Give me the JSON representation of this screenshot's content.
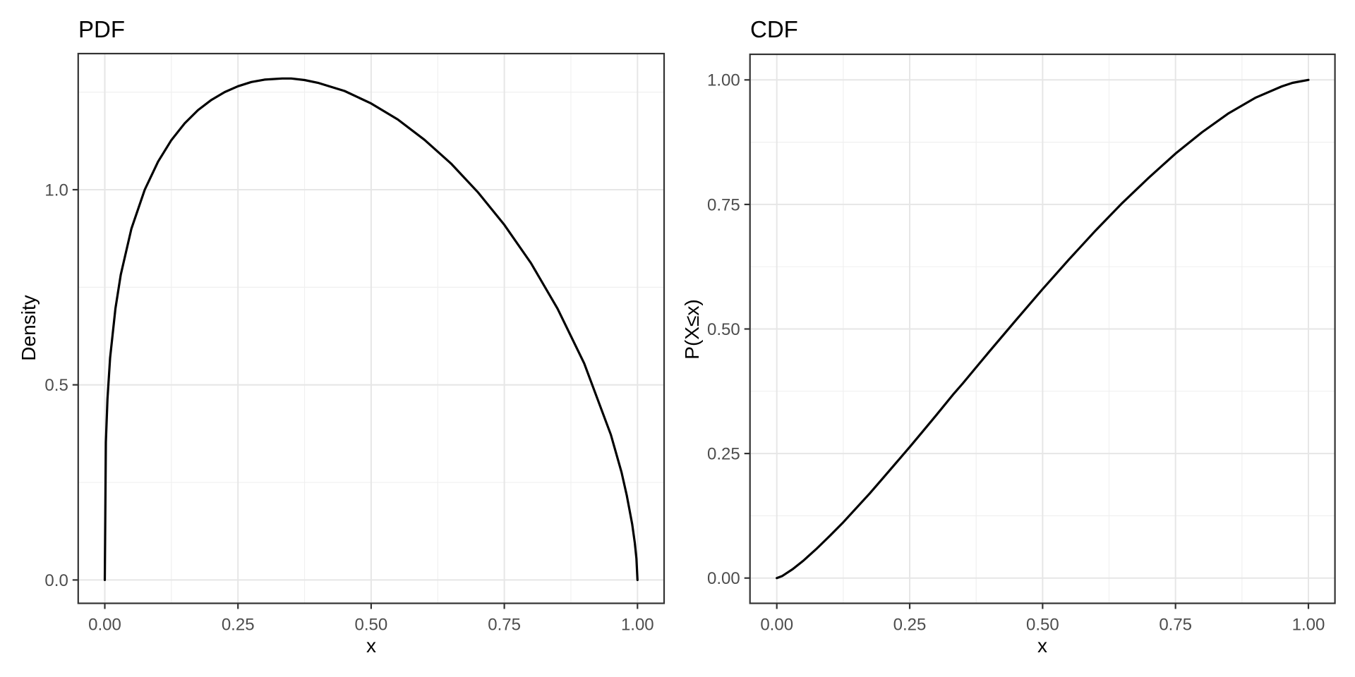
{
  "figure": {
    "background": "#FFFFFF"
  },
  "colors": {
    "curve": "#000000",
    "grid_major": "#E6E6E6",
    "grid_minor": "#F0F0F0",
    "panel_border": "#333333",
    "panel_background": "#FFFFFF",
    "tick_mark": "#333333",
    "tick_label": "#4D4D4D",
    "title": "#000000",
    "axis_title": "#000000"
  },
  "chart_data": [
    {
      "type": "line",
      "title": "PDF",
      "xlabel": "x",
      "ylabel": "Density",
      "grid": true,
      "legend": false,
      "xlim": [
        0,
        1
      ],
      "ylim": [
        0,
        1.285
      ],
      "x_ticks": {
        "values": [
          0,
          0.25,
          0.5,
          0.75,
          1
        ],
        "labels": [
          "0.00",
          "0.25",
          "0.50",
          "0.75",
          "1.00"
        ]
      },
      "y_ticks": {
        "values": [
          0,
          0.5,
          1
        ],
        "labels": [
          "0.0",
          "0.5",
          "1.0"
        ]
      },
      "line_color": "#000000",
      "points": [
        [
          0,
          0
        ],
        [
          0.002,
          0.353
        ],
        [
          0.005,
          0.464
        ],
        [
          0.01,
          0.569
        ],
        [
          0.02,
          0.696
        ],
        [
          0.03,
          0.782
        ],
        [
          0.05,
          0.9
        ],
        [
          0.075,
          1.0
        ],
        [
          0.1,
          1.072
        ],
        [
          0.125,
          1.127
        ],
        [
          0.15,
          1.17
        ],
        [
          0.175,
          1.204
        ],
        [
          0.2,
          1.23
        ],
        [
          0.225,
          1.25
        ],
        [
          0.25,
          1.265
        ],
        [
          0.275,
          1.276
        ],
        [
          0.3,
          1.282
        ],
        [
          0.333,
          1.285
        ],
        [
          0.35,
          1.285
        ],
        [
          0.375,
          1.281
        ],
        [
          0.4,
          1.274
        ],
        [
          0.45,
          1.253
        ],
        [
          0.5,
          1.221
        ],
        [
          0.55,
          1.18
        ],
        [
          0.6,
          1.128
        ],
        [
          0.65,
          1.067
        ],
        [
          0.7,
          0.994
        ],
        [
          0.75,
          0.91
        ],
        [
          0.8,
          0.812
        ],
        [
          0.85,
          0.695
        ],
        [
          0.9,
          0.555
        ],
        [
          0.95,
          0.372
        ],
        [
          0.97,
          0.276
        ],
        [
          0.98,
          0.216
        ],
        [
          0.99,
          0.143
        ],
        [
          0.995,
          0.095
        ],
        [
          0.998,
          0.055
        ],
        [
          1,
          0
        ]
      ]
    },
    {
      "type": "line",
      "title": "CDF",
      "xlabel": "x",
      "ylabel": "P(X≤x)",
      "grid": true,
      "legend": false,
      "xlim": [
        0,
        1
      ],
      "ylim": [
        0,
        1
      ],
      "x_ticks": {
        "values": [
          0,
          0.25,
          0.5,
          0.75,
          1
        ],
        "labels": [
          "0.00",
          "0.25",
          "0.50",
          "0.75",
          "1.00"
        ]
      },
      "y_ticks": {
        "values": [
          0,
          0.25,
          0.5,
          0.75,
          1
        ],
        "labels": [
          "0.00",
          "0.25",
          "0.50",
          "0.75",
          "1.00"
        ]
      },
      "line_color": "#000000",
      "points": [
        [
          0,
          0
        ],
        [
          0.01,
          0.004
        ],
        [
          0.02,
          0.011
        ],
        [
          0.03,
          0.018
        ],
        [
          0.05,
          0.035
        ],
        [
          0.075,
          0.059
        ],
        [
          0.1,
          0.085
        ],
        [
          0.125,
          0.112
        ],
        [
          0.15,
          0.141
        ],
        [
          0.175,
          0.17
        ],
        [
          0.2,
          0.201
        ],
        [
          0.225,
          0.232
        ],
        [
          0.25,
          0.263
        ],
        [
          0.275,
          0.295
        ],
        [
          0.3,
          0.327
        ],
        [
          0.333,
          0.37
        ],
        [
          0.35,
          0.391
        ],
        [
          0.375,
          0.423
        ],
        [
          0.4,
          0.455
        ],
        [
          0.45,
          0.518
        ],
        [
          0.5,
          0.58
        ],
        [
          0.55,
          0.64
        ],
        [
          0.6,
          0.698
        ],
        [
          0.65,
          0.753
        ],
        [
          0.7,
          0.804
        ],
        [
          0.75,
          0.852
        ],
        [
          0.8,
          0.895
        ],
        [
          0.85,
          0.933
        ],
        [
          0.9,
          0.964
        ],
        [
          0.95,
          0.987
        ],
        [
          0.97,
          0.994
        ],
        [
          0.99,
          0.998
        ],
        [
          1,
          1
        ]
      ]
    }
  ]
}
